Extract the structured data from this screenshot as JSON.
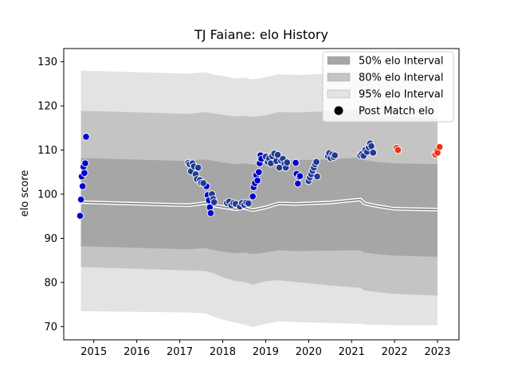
{
  "chart_data": {
    "type": "scatter",
    "title": "TJ Faiane: elo History",
    "xlabel": "",
    "ylabel": "elo score",
    "xlim": [
      2014.3,
      2023.5
    ],
    "ylim": [
      67,
      133
    ],
    "x_ticks": [
      2015,
      2016,
      2017,
      2018,
      2019,
      2020,
      2021,
      2022,
      2023
    ],
    "y_ticks": [
      70,
      80,
      90,
      100,
      110,
      120,
      130
    ],
    "grid": false,
    "legend_position": "top-right",
    "legend": [
      {
        "label": "50% elo Interval",
        "kind": "band50"
      },
      {
        "label": "80% elo Interval",
        "kind": "band80"
      },
      {
        "label": "95% elo Interval",
        "kind": "band95"
      },
      {
        "label": "Post Match elo",
        "kind": "marker"
      }
    ],
    "colors": {
      "band50": "#a6a6a6",
      "band80": "#c4c4c4",
      "band95": "#e3e3e3",
      "mean_line": "#808080",
      "point_blue": "#0000cc",
      "point_navy": "#1f3a93",
      "point_red": "#ee3311",
      "legend_marker": "#000000"
    },
    "intervals": {
      "x": [
        2014.7,
        2017.2,
        2017.6,
        2017.8,
        2018.0,
        2018.3,
        2018.5,
        2018.7,
        2019.0,
        2019.3,
        2019.7,
        2020.5,
        2021.2,
        2021.3,
        2021.6,
        2022.0,
        2023.0
      ],
      "mean": [
        98.2,
        97.5,
        98.0,
        97.4,
        97.1,
        96.6,
        96.9,
        96.4,
        97.0,
        97.9,
        97.8,
        98.1,
        98.8,
        97.9,
        97.3,
        96.7,
        96.5
      ],
      "lo50": [
        88.2,
        87.5,
        87.8,
        87.3,
        87.0,
        86.6,
        86.8,
        86.4,
        86.8,
        87.3,
        87.1,
        87.2,
        87.3,
        86.8,
        86.4,
        86.1,
        85.8
      ],
      "hi50": [
        108.2,
        107.5,
        107.9,
        107.5,
        107.2,
        106.8,
        107.0,
        106.7,
        107.1,
        107.8,
        107.7,
        107.9,
        108.3,
        107.7,
        107.3,
        107.0,
        106.8
      ],
      "lo80": [
        83.5,
        82.7,
        82.6,
        82.0,
        81.2,
        80.3,
        80.1,
        79.5,
        80.3,
        80.5,
        80.1,
        79.3,
        78.8,
        78.2,
        77.8,
        77.4,
        77.0
      ],
      "hi80": [
        118.9,
        118.2,
        118.6,
        118.3,
        118.0,
        117.6,
        117.8,
        117.5,
        117.9,
        118.6,
        118.5,
        118.8,
        119.4,
        118.5,
        118.0,
        117.6,
        117.3
      ],
      "lo95": [
        73.5,
        73.2,
        73.0,
        72.2,
        71.6,
        70.9,
        70.5,
        69.9,
        70.6,
        71.2,
        71.0,
        70.8,
        70.6,
        70.5,
        70.4,
        70.3,
        70.3
      ],
      "hi95": [
        128.0,
        127.3,
        127.6,
        127.1,
        126.8,
        126.2,
        126.4,
        126.0,
        126.5,
        127.2,
        127.0,
        127.3,
        127.7,
        127.2,
        126.9,
        126.6,
        126.4
      ]
    },
    "series": [
      {
        "color_key": "point_blue",
        "x": [
          2014.68,
          2014.7,
          2014.72,
          2014.74,
          2014.76,
          2014.78,
          2014.8,
          2014.82,
          2017.62,
          2017.65,
          2017.68,
          2017.7,
          2017.72,
          2018.7,
          2018.72,
          2018.75,
          2018.78,
          2018.81,
          2018.84,
          2018.86,
          2018.88,
          2018.9,
          2019.7,
          2019.72,
          2019.75,
          2019.78,
          2019.8
        ],
        "y": [
          95.1,
          98.8,
          104.0,
          101.8,
          106.2,
          104.8,
          107.0,
          113.0,
          101.8,
          99.8,
          98.6,
          97.0,
          95.7,
          99.5,
          101.6,
          102.5,
          104.3,
          103.1,
          105.0,
          107.0,
          108.8,
          108.0,
          107.1,
          104.6,
          102.4,
          103.9,
          104.1
        ]
      },
      {
        "color_key": "point_navy",
        "x": [
          2017.2,
          2017.23,
          2017.26,
          2017.3,
          2017.33,
          2017.37,
          2017.4,
          2017.43,
          2017.47,
          2017.5,
          2017.55,
          2017.75,
          2017.78,
          2017.8,
          2018.1,
          2018.15,
          2018.2,
          2018.25,
          2018.3,
          2018.4,
          2018.45,
          2018.5,
          2018.55,
          2018.6,
          2019.0,
          2019.05,
          2019.08,
          2019.12,
          2019.15,
          2019.2,
          2019.25,
          2019.28,
          2019.32,
          2019.36,
          2019.4,
          2019.44,
          2019.47,
          2019.5,
          2020.0,
          2020.03,
          2020.06,
          2020.09,
          2020.12,
          2020.15,
          2020.18,
          2020.2,
          2020.45,
          2020.48,
          2020.51,
          2020.55,
          2020.58,
          2020.61,
          2021.2,
          2021.24,
          2021.28,
          2021.32,
          2021.36,
          2021.4,
          2021.43,
          2021.46,
          2021.5
        ],
        "y": [
          107.1,
          106.8,
          105.2,
          107.0,
          106.3,
          104.5,
          103.4,
          106.0,
          103.2,
          102.6,
          102.5,
          100.0,
          98.9,
          98.2,
          98.0,
          98.3,
          97.5,
          98.0,
          97.8,
          97.2,
          98.0,
          97.6,
          98.1,
          97.9,
          108.5,
          107.3,
          108.1,
          107.0,
          108.6,
          109.2,
          107.5,
          108.9,
          106.0,
          107.6,
          108.0,
          106.9,
          106.0,
          107.2,
          103.0,
          103.8,
          104.5,
          105.3,
          106.0,
          106.8,
          107.3,
          104.0,
          108.6,
          109.3,
          108.2,
          109.0,
          108.4,
          108.8,
          108.8,
          109.1,
          108.7,
          110.0,
          109.6,
          110.6,
          111.5,
          110.9,
          109.4
        ]
      },
      {
        "color_key": "point_red",
        "x": [
          2022.05,
          2022.08,
          2022.95,
          2022.98,
          2023.0,
          2023.05
        ],
        "y": [
          110.5,
          110.0,
          109.0,
          109.8,
          109.4,
          110.7
        ]
      }
    ]
  }
}
